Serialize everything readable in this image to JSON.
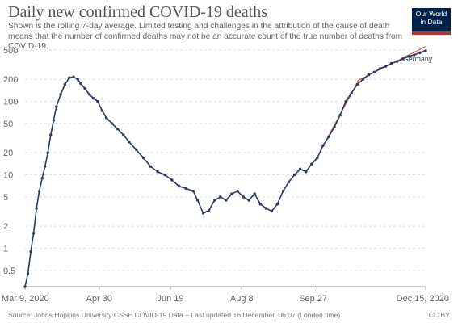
{
  "header": {
    "title": "Daily new confirmed COVID-19 deaths",
    "subtitle": "Shown is the rolling 7-day average. Limited testing and challenges in the attribution of the cause of death means that the number of confirmed deaths may not be an accurate count of the true number of deaths from COVID-19."
  },
  "logo": {
    "line1": "Our World",
    "line2": "in Data"
  },
  "footer": {
    "source": "Source: Johns Hopkins University CSSE COVID-19 Data – Last updated 16 December, 06:07 (London time)",
    "license": "CC BY"
  },
  "colors": {
    "line": "#2b3a5a",
    "trend": "#e06040",
    "grid": "#dddddd"
  },
  "chart_data": {
    "type": "line",
    "title": "Daily new confirmed COVID-19 deaths",
    "scale": "log",
    "ylim": [
      0.3,
      500
    ],
    "xlim": [
      "2020-03-09",
      "2020-12-15"
    ],
    "yticks": [
      0.5,
      1,
      2,
      5,
      10,
      20,
      50,
      100,
      200,
      500
    ],
    "ytick_labels": [
      "0.5",
      "1",
      "2",
      "5",
      "10",
      "20",
      "50",
      "100",
      "200",
      "500"
    ],
    "xticks": [
      "2020-03-09",
      "2020-04-30",
      "2020-06-19",
      "2020-08-08",
      "2020-09-27",
      "2020-12-15"
    ],
    "xtick_labels": [
      "Mar 9, 2020",
      "Apr 30",
      "Jun 19",
      "Aug 8",
      "Sep 27",
      "Dec 15, 2020"
    ],
    "grid": "horizontal",
    "series": [
      {
        "name": "Germany",
        "x": [
          "2020-03-09",
          "2020-03-11",
          "2020-03-13",
          "2020-03-15",
          "2020-03-17",
          "2020-03-19",
          "2020-03-21",
          "2020-03-23",
          "2020-03-25",
          "2020-03-27",
          "2020-03-29",
          "2020-03-31",
          "2020-04-03",
          "2020-04-06",
          "2020-04-09",
          "2020-04-12",
          "2020-04-15",
          "2020-04-17",
          "2020-04-20",
          "2020-04-23",
          "2020-04-26",
          "2020-04-29",
          "2020-05-02",
          "2020-05-05",
          "2020-05-09",
          "2020-05-13",
          "2020-05-17",
          "2020-05-21",
          "2020-05-26",
          "2020-05-31",
          "2020-06-05",
          "2020-06-10",
          "2020-06-15",
          "2020-06-20",
          "2020-06-25",
          "2020-06-30",
          "2020-07-05",
          "2020-07-08",
          "2020-07-12",
          "2020-07-16",
          "2020-07-20",
          "2020-07-24",
          "2020-07-28",
          "2020-08-01",
          "2020-08-05",
          "2020-08-09",
          "2020-08-13",
          "2020-08-17",
          "2020-08-21",
          "2020-08-25",
          "2020-08-29",
          "2020-09-02",
          "2020-09-06",
          "2020-09-10",
          "2020-09-14",
          "2020-09-18",
          "2020-09-22",
          "2020-09-26",
          "2020-09-30",
          "2020-10-04",
          "2020-10-08",
          "2020-10-12",
          "2020-10-16",
          "2020-10-20",
          "2020-10-24",
          "2020-10-28",
          "2020-11-01",
          "2020-11-05",
          "2020-11-09",
          "2020-11-13",
          "2020-11-17",
          "2020-11-21",
          "2020-11-25",
          "2020-11-29",
          "2020-12-03",
          "2020-12-07",
          "2020-12-11",
          "2020-12-15"
        ],
        "values": [
          0.3,
          0.45,
          0.9,
          1.6,
          3.5,
          6,
          9,
          13,
          20,
          35,
          55,
          85,
          125,
          170,
          210,
          215,
          200,
          175,
          150,
          125,
          110,
          100,
          75,
          60,
          50,
          42,
          35,
          28,
          22,
          17,
          13,
          11,
          10,
          8.5,
          7,
          6.5,
          6,
          4.5,
          3,
          3.3,
          4.5,
          5,
          4.5,
          5.5,
          6,
          5,
          4.5,
          5.5,
          4,
          3.5,
          3.2,
          4,
          6,
          8,
          10,
          12,
          11,
          14,
          17,
          25,
          33,
          45,
          65,
          100,
          130,
          170,
          200,
          230,
          250,
          280,
          300,
          330,
          350,
          380,
          410,
          430,
          460,
          490
        ]
      }
    ],
    "annotations": [
      "Germany"
    ]
  }
}
